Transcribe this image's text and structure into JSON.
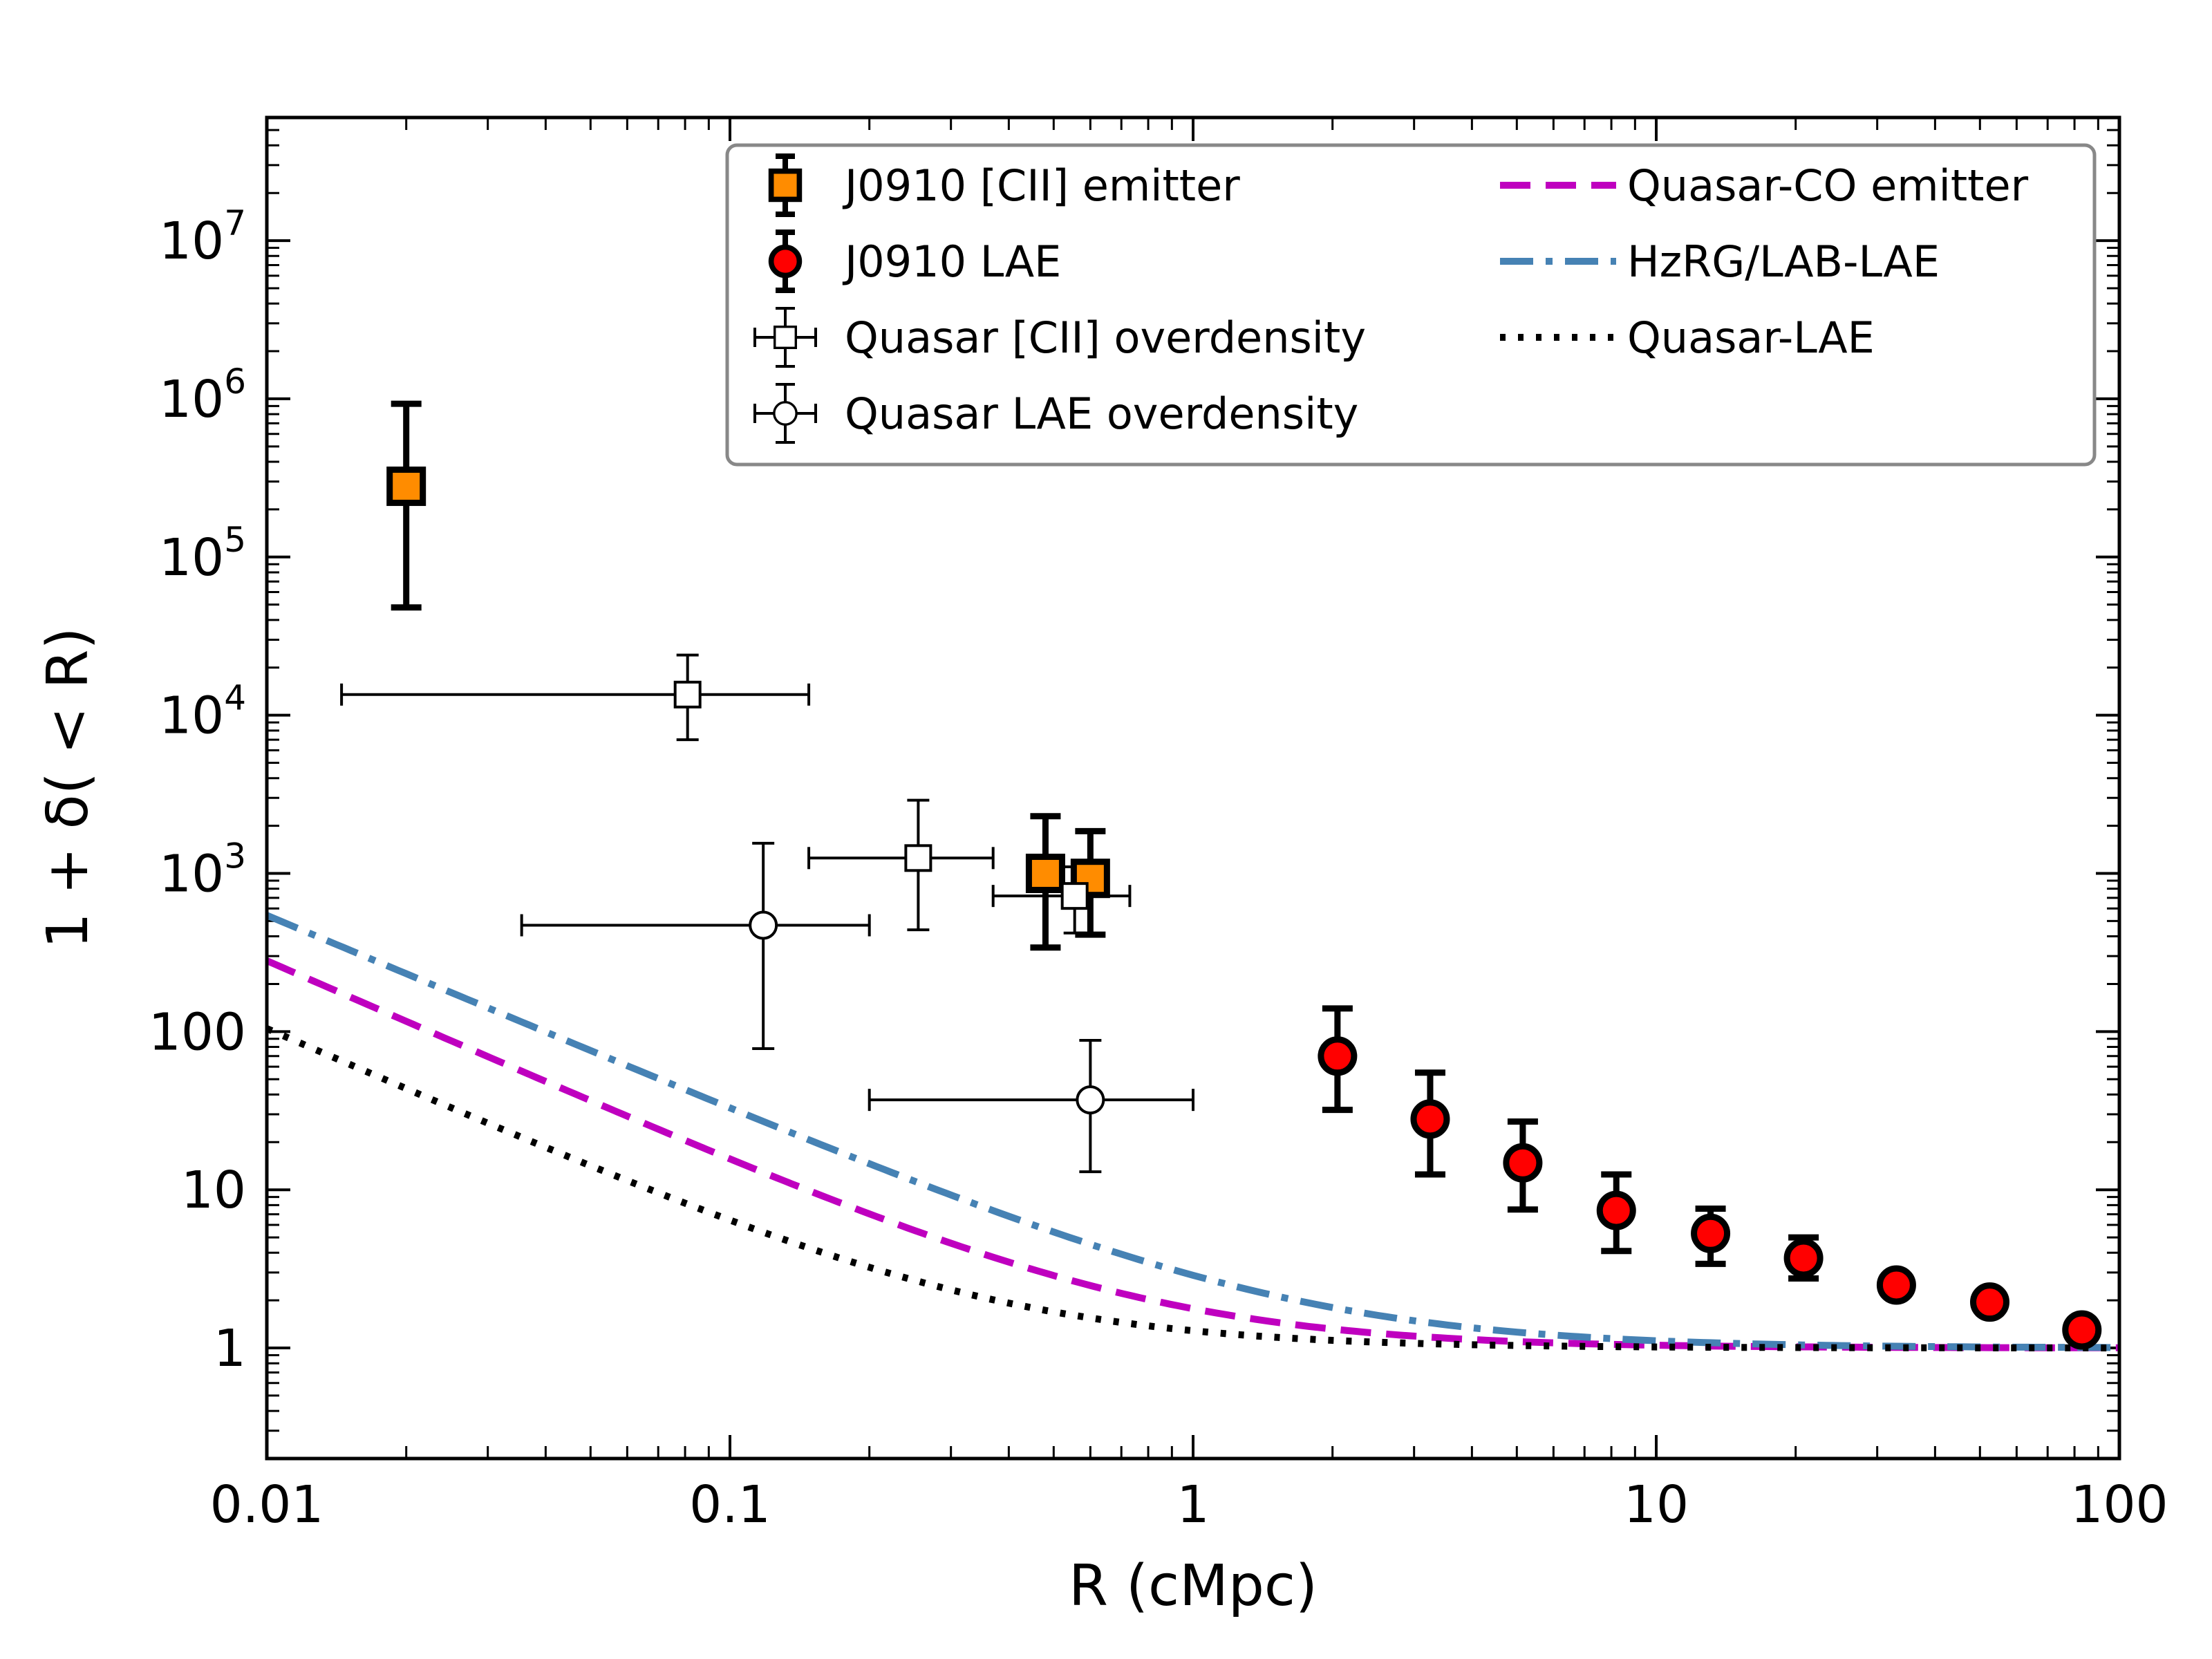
{
  "chart_data": {
    "type": "scatter",
    "xlabel": "R (cMpc)",
    "ylabel": "1 + δ( < R)",
    "xscale": "log",
    "yscale": "log",
    "xlim": [
      0.01,
      100
    ],
    "ylim": [
      0.2,
      60000000
    ],
    "x_ticks": [
      {
        "value": 0.01,
        "label": "0.01"
      },
      {
        "value": 0.1,
        "label": "0.1"
      },
      {
        "value": 1,
        "label": "1"
      },
      {
        "value": 10,
        "label": "10"
      },
      {
        "value": 100,
        "label": "100"
      }
    ],
    "y_ticks": [
      {
        "value": 1,
        "base": "1",
        "exp": ""
      },
      {
        "value": 10,
        "base": "10",
        "exp": ""
      },
      {
        "value": 100,
        "base": "100",
        "exp": ""
      },
      {
        "value": 1000,
        "base": "10",
        "exp": "3"
      },
      {
        "value": 10000,
        "base": "10",
        "exp": "4"
      },
      {
        "value": 100000,
        "base": "10",
        "exp": "5"
      },
      {
        "value": 1000000,
        "base": "10",
        "exp": "6"
      },
      {
        "value": 10000000,
        "base": "10",
        "exp": "7"
      }
    ],
    "legend_position": "top-right",
    "series": [
      {
        "name": "J0910 [CII] emitter",
        "kind": "points",
        "marker": "square-filled",
        "color": "#ff8c00",
        "points": [
          {
            "x": 0.02,
            "y": 280000,
            "ylo": 48000,
            "yhi": 930000
          },
          {
            "x": 0.48,
            "y": 1000,
            "ylo": 340,
            "yhi": 2300
          },
          {
            "x": 0.6,
            "y": 930,
            "ylo": 410,
            "yhi": 1850
          }
        ]
      },
      {
        "name": "J0910 LAE",
        "kind": "points",
        "marker": "circle-filled",
        "color": "#ff0000",
        "points": [
          {
            "x": 2.05,
            "y": 70,
            "ylo": 32,
            "yhi": 140
          },
          {
            "x": 3.25,
            "y": 28,
            "ylo": 12.5,
            "yhi": 55
          },
          {
            "x": 5.15,
            "y": 14.8,
            "ylo": 7.5,
            "yhi": 27
          },
          {
            "x": 8.2,
            "y": 7.4,
            "ylo": 4.1,
            "yhi": 12.5
          },
          {
            "x": 13.1,
            "y": 5.3,
            "ylo": 3.4,
            "yhi": 7.6
          },
          {
            "x": 20.8,
            "y": 3.7,
            "ylo": 2.75,
            "yhi": 5.0
          },
          {
            "x": 33,
            "y": 2.5
          },
          {
            "x": 52.5,
            "y": 1.95
          },
          {
            "x": 83,
            "y": 1.3
          }
        ]
      },
      {
        "name": "Quasar [CII] overdensity",
        "kind": "points",
        "marker": "square-open",
        "color": "#000000",
        "points": [
          {
            "x": 0.081,
            "y": 13500,
            "xlo": 0.0145,
            "xhi": 0.148,
            "ylo": 7000,
            "yhi": 24000
          },
          {
            "x": 0.255,
            "y": 1250,
            "xlo": 0.148,
            "xhi": 0.37,
            "ylo": 440,
            "yhi": 2900
          },
          {
            "x": 0.555,
            "y": 720,
            "xlo": 0.37,
            "xhi": 0.73,
            "ylo": 420,
            "yhi": 1100
          }
        ]
      },
      {
        "name": "Quasar LAE overdensity",
        "kind": "points",
        "marker": "circle-open",
        "color": "#000000",
        "points": [
          {
            "x": 0.118,
            "y": 470,
            "xlo": 0.0355,
            "xhi": 0.2,
            "ylo": 78,
            "yhi": 1550
          },
          {
            "x": 0.6,
            "y": 37,
            "xlo": 0.2,
            "xhi": 1.0,
            "ylo": 13,
            "yhi": 88
          }
        ]
      },
      {
        "name": "Quasar-CO emitter",
        "kind": "line",
        "style": "dashed",
        "color": "#bf00bf",
        "amp": 0.77,
        "slope": 1.28
      },
      {
        "name": "HzRG/LAB-LAE",
        "kind": "line",
        "style": "dashdot",
        "color": "#4682b4",
        "amp": 1.88,
        "slope": 1.23
      },
      {
        "name": "Quasar-LAE",
        "kind": "line",
        "style": "dotted",
        "color": "#000000",
        "amp": 0.285,
        "slope": 1.28
      }
    ]
  }
}
